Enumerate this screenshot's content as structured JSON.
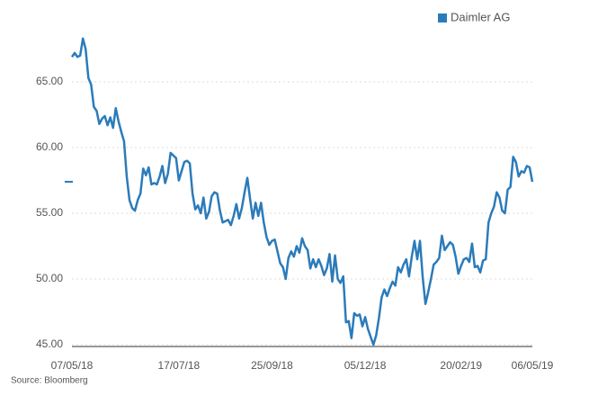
{
  "chart_data": {
    "type": "line",
    "source": "Source: Bloomberg",
    "legend": "top-right",
    "categories": [
      "07/05/18",
      null,
      null,
      null,
      null,
      null,
      null,
      null,
      null,
      null,
      null,
      null,
      null,
      null,
      null,
      null,
      null,
      null,
      null,
      null,
      null,
      null,
      null,
      null,
      null,
      null,
      null,
      null,
      null,
      null,
      null,
      null,
      null,
      null,
      null,
      null,
      null,
      null,
      null,
      "17/07/18",
      null,
      null,
      null,
      null,
      null,
      null,
      null,
      null,
      null,
      null,
      null,
      null,
      null,
      null,
      null,
      null,
      null,
      null,
      null,
      null,
      null,
      null,
      null,
      null,
      null,
      null,
      null,
      null,
      null,
      null,
      null,
      null,
      null,
      "25/09/18",
      null,
      null,
      null,
      null,
      null,
      null,
      null,
      null,
      null,
      null,
      null,
      null,
      null,
      null,
      null,
      null,
      null,
      null,
      null,
      null,
      null,
      null,
      null,
      null,
      null,
      null,
      null,
      null,
      null,
      null,
      null,
      null,
      null,
      "05/12/18",
      null,
      null,
      null,
      null,
      null,
      null,
      null,
      null,
      null,
      null,
      null,
      null,
      null,
      null,
      null,
      null,
      null,
      null,
      null,
      null,
      null,
      null,
      null,
      null,
      null,
      null,
      null,
      null,
      null,
      null,
      null,
      null,
      null,
      null,
      "20/02/19",
      null,
      null,
      null,
      null,
      null,
      null,
      null,
      null,
      null,
      null,
      null,
      null,
      null,
      null,
      null,
      null,
      null,
      null,
      null,
      null,
      null,
      null,
      null,
      null,
      null,
      "06/05/19"
    ],
    "series": [
      {
        "name": "Daimler AG",
        "color": "#2b7bba",
        "values": [
          66.9,
          67.2,
          66.9,
          67.0,
          68.3,
          67.5,
          65.3,
          64.8,
          63.1,
          62.8,
          61.8,
          62.2,
          62.4,
          61.7,
          62.3,
          61.5,
          63.0,
          62.0,
          61.2,
          60.5,
          57.8,
          56.0,
          55.4,
          55.2,
          56.0,
          56.5,
          58.4,
          57.9,
          58.5,
          57.2,
          57.3,
          57.2,
          57.8,
          58.6,
          57.3,
          58.0,
          59.6,
          59.4,
          59.2,
          57.5,
          58.2,
          58.9,
          59.0,
          58.8,
          56.5,
          55.3,
          55.6,
          55.0,
          56.2,
          54.6,
          55.1,
          56.3,
          56.6,
          56.5,
          55.2,
          54.3,
          54.4,
          54.5,
          54.1,
          54.8,
          55.7,
          54.6,
          55.4,
          56.6,
          57.7,
          56.1,
          54.6,
          55.8,
          54.8,
          55.8,
          54.3,
          53.2,
          52.6,
          52.9,
          53.0,
          52.1,
          51.2,
          50.9,
          50.0,
          51.6,
          52.1,
          51.7,
          52.5,
          52.0,
          53.1,
          52.5,
          52.2,
          50.8,
          51.5,
          50.9,
          51.5,
          51.0,
          50.3,
          50.8,
          51.9,
          49.8,
          51.8,
          50.0,
          49.7,
          50.2,
          46.7,
          46.8,
          45.5,
          47.4,
          47.2,
          47.3,
          46.4,
          47.1,
          46.2,
          45.6,
          45.0,
          45.7,
          47.0,
          48.6,
          49.2,
          48.7,
          49.3,
          49.8,
          49.5,
          50.9,
          50.5,
          51.1,
          51.5,
          50.2,
          51.7,
          52.9,
          51.5,
          52.9,
          50.1,
          48.1,
          49.0,
          50.0,
          51.1,
          51.3,
          51.6,
          53.3,
          52.2,
          52.5,
          52.8,
          52.6,
          51.7,
          50.4,
          51.0,
          51.5,
          51.6,
          51.3,
          52.7,
          50.9,
          51.0,
          50.5,
          51.4,
          51.5,
          54.3,
          55.0,
          55.5,
          56.6,
          56.2,
          55.2,
          55.0,
          56.8,
          57.0,
          59.3,
          58.9,
          57.8,
          58.2,
          58.1,
          58.6,
          58.5,
          57.4
        ]
      }
    ],
    "ylim": [
      45,
      69
    ],
    "yticks": [
      {
        "value": 45,
        "label": "45.00"
      },
      {
        "value": 50,
        "label": "50.00"
      },
      {
        "value": 55,
        "label": "55.00"
      },
      {
        "value": 60,
        "label": "60.00"
      },
      {
        "value": 65,
        "label": "65.00"
      }
    ],
    "grid": true
  }
}
